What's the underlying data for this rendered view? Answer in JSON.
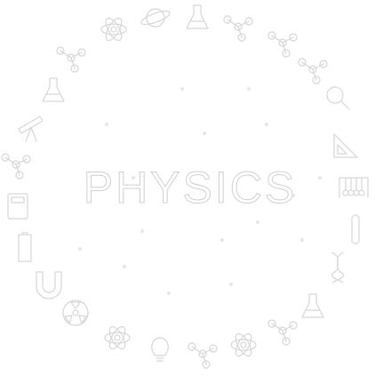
{
  "title": "PHYSICS"
}
